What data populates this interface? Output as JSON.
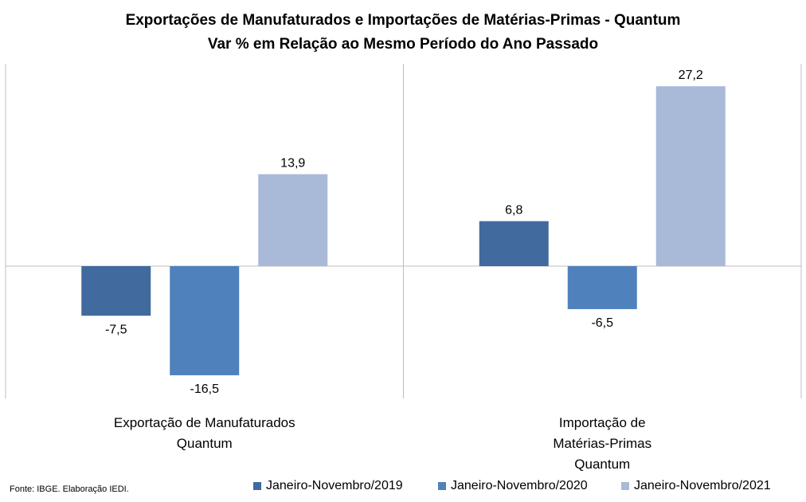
{
  "chart_data": {
    "type": "bar",
    "title": "Exportações de Manufaturados e Importações de Matérias-Primas - Quantum",
    "subtitle": "Var % em Relação ao Mesmo Período do Ano Passado",
    "categories": [
      [
        "Exportação de Manufaturados",
        "Quantum"
      ],
      [
        "Importação de",
        "Matérias-Primas",
        "Quantum"
      ]
    ],
    "series": [
      {
        "name": "Janeiro-Novembro/2019",
        "color": "#416A9E",
        "values": [
          -7.5,
          6.8
        ],
        "labels": [
          "-7,5",
          "6,8"
        ]
      },
      {
        "name": "Janeiro-Novembro/2020",
        "color": "#4F81BD",
        "values": [
          -16.5,
          -6.5
        ],
        "labels": [
          "-16,5",
          "-6,5"
        ]
      },
      {
        "name": "Janeiro-Novembro/2021",
        "color": "#A9B9D8",
        "values": [
          13.9,
          27.2
        ],
        "labels": [
          "13,9",
          "27,2"
        ]
      }
    ],
    "ylim": [
      -20,
      30
    ],
    "grid": false,
    "legend": "bottom"
  },
  "footer": {
    "source": "Fonte: IBGE. Elaboração IEDI."
  }
}
